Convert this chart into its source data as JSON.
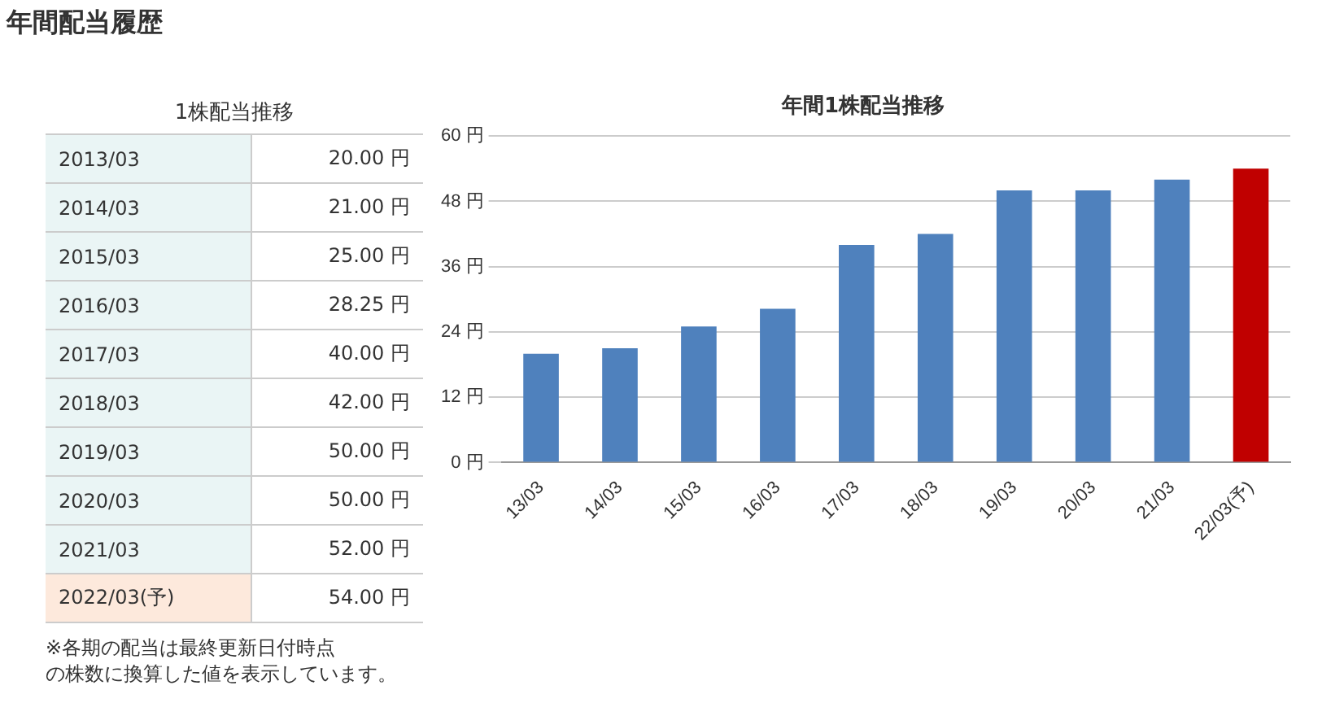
{
  "chart_data": [
    {
      "type": "other",
      "title": "1株配当推移",
      "categories": [
        "2013/03",
        "2014/03",
        "2015/03",
        "2016/03",
        "2017/03",
        "2018/03",
        "2019/03",
        "2020/03",
        "2021/03",
        "2022/03(予)"
      ],
      "value_labels": [
        "20.00 円",
        "21.00 円",
        "25.00 円",
        "28.25 円",
        "40.00 円",
        "42.00 円",
        "50.00 円",
        "50.00 円",
        "52.00 円",
        "54.00 円"
      ],
      "annotations": [
        "年間配当履歴",
        "※各期の配当は最終更新日付時点",
        "の株数に換算した値を表示しています。"
      ]
    },
    {
      "type": "bar",
      "title": "年間1株配当推移",
      "categories": [
        "13/03",
        "14/03",
        "15/03",
        "16/03",
        "17/03",
        "18/03",
        "19/03",
        "20/03",
        "21/03",
        "22/03(予)"
      ],
      "values": [
        20,
        21,
        25,
        28.25,
        40,
        42,
        50,
        50,
        52,
        54
      ],
      "colors": [
        "#4f81bd",
        "#4f81bd",
        "#4f81bd",
        "#4f81bd",
        "#4f81bd",
        "#4f81bd",
        "#4f81bd",
        "#4f81bd",
        "#4f81bd",
        "#c00000"
      ],
      "ylim": [
        0,
        60
      ],
      "yticks": [
        {
          "value": 0,
          "label": "0 円"
        },
        {
          "value": 12,
          "label": "12 円"
        },
        {
          "value": 24,
          "label": "24 円"
        },
        {
          "value": 36,
          "label": "36 円"
        },
        {
          "value": 48,
          "label": "48 円"
        },
        {
          "value": 60,
          "label": "60 円"
        }
      ],
      "grid": "y"
    }
  ]
}
